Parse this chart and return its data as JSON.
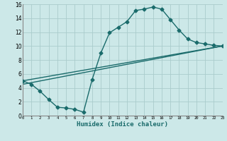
{
  "bg_color": "#cce8e8",
  "line_color": "#1a6b6b",
  "grid_color": "#aacccc",
  "xlabel": "Humidex (Indice chaleur)",
  "xlim": [
    0,
    23
  ],
  "ylim": [
    0,
    16
  ],
  "xticks": [
    0,
    1,
    2,
    3,
    4,
    5,
    6,
    7,
    8,
    9,
    10,
    11,
    12,
    13,
    14,
    15,
    16,
    17,
    18,
    19,
    20,
    21,
    22,
    23
  ],
  "yticks": [
    0,
    2,
    4,
    6,
    8,
    10,
    12,
    14,
    16
  ],
  "curve1_x": [
    0,
    1,
    2,
    3,
    4,
    5,
    6,
    7,
    8,
    9,
    10,
    11,
    12,
    13,
    14,
    15,
    16,
    17,
    18,
    19,
    20,
    21,
    22,
    23
  ],
  "curve1_y": [
    5.0,
    4.5,
    3.5,
    2.3,
    1.2,
    1.1,
    0.9,
    0.5,
    5.2,
    9.0,
    11.9,
    12.7,
    13.5,
    15.1,
    15.3,
    15.6,
    15.3,
    13.8,
    12.3,
    11.0,
    10.5,
    10.3,
    10.1,
    10.0
  ],
  "line2_x": [
    0,
    23
  ],
  "line2_y": [
    5.0,
    10.0
  ],
  "line3_x": [
    0,
    23
  ],
  "line3_y": [
    4.5,
    10.0
  ],
  "marker": "D",
  "markersize": 2.5,
  "linewidth": 1.0
}
